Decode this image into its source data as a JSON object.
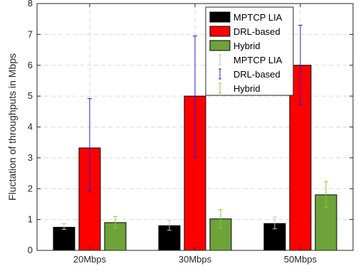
{
  "chart_data": {
    "type": "bar",
    "categories": [
      "20Mbps",
      "30Mbps",
      "50Mbps"
    ],
    "ylabel": "Fluctation of throughputs in Mbps",
    "xlabel": "",
    "ylim": [
      0,
      8
    ],
    "yticks": [
      0,
      1,
      2,
      3,
      4,
      5,
      6,
      7,
      8
    ],
    "grid": true,
    "legend_position": "top-center",
    "series": [
      {
        "name": "MPTCP LIA",
        "color": "#000000",
        "error_color": "#c0c0c0",
        "values": [
          0.75,
          0.8,
          0.87
        ],
        "error_low": [
          0.68,
          0.65,
          0.7
        ],
        "error_high": [
          0.87,
          0.97,
          1.08
        ]
      },
      {
        "name": "DRL-based",
        "color": "#ff0000",
        "error_color": "#1f1fd6",
        "values": [
          3.32,
          5.0,
          6.0
        ],
        "error_low": [
          1.9,
          3.02,
          4.72
        ],
        "error_high": [
          4.92,
          6.95,
          7.3
        ]
      },
      {
        "name": "Hybrid",
        "color": "#6ea33a",
        "error_color": "#7ed321",
        "values": [
          0.9,
          1.02,
          1.8
        ],
        "error_low": [
          0.72,
          0.72,
          1.4
        ],
        "error_high": [
          1.1,
          1.32,
          2.22
        ]
      }
    ],
    "legend": {
      "bar_entries": [
        "MPTCP LIA",
        "DRL-based",
        "Hybrid"
      ],
      "errorbar_entries": [
        "MPTCP LIA",
        "DRL-based",
        "Hybrid"
      ]
    }
  }
}
